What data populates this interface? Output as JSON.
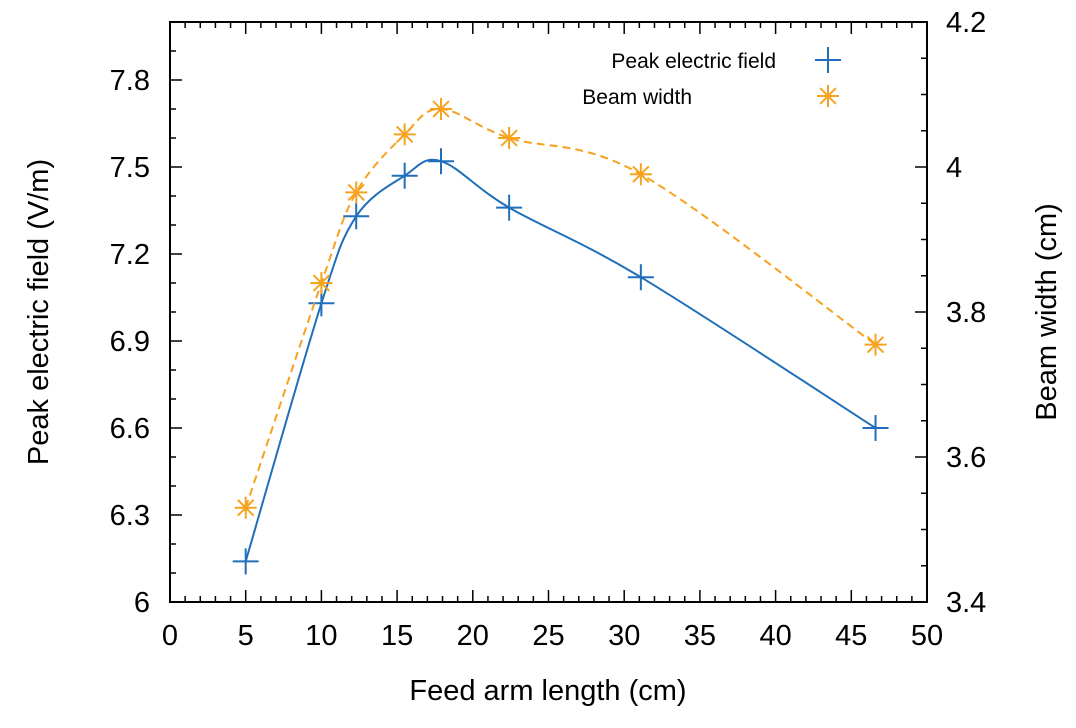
{
  "chart_data": {
    "type": "line",
    "xlabel": "Feed arm length (cm)",
    "ylabel": "Peak electric field (V/m)",
    "y2label": "Beam width (cm)",
    "xlim": [
      0,
      50
    ],
    "ylim": [
      6.0,
      8.0
    ],
    "y2lim": [
      3.4,
      4.2
    ],
    "xticks": [
      "0",
      "5",
      "10",
      "15",
      "20",
      "25",
      "30",
      "35",
      "40",
      "45",
      "50"
    ],
    "yticks": [
      "6",
      "6.3",
      "6.6",
      "6.9",
      "7.2",
      "7.5",
      "7.8"
    ],
    "y2ticks": [
      "3.4",
      "3.6",
      "3.8",
      "4",
      "4.2"
    ],
    "legend_position": "top-right",
    "grid": false,
    "series": [
      {
        "name": "Peak electric field",
        "axis": "left",
        "color": "#1f6fba",
        "marker": "plus",
        "line_style": "solid",
        "x": [
          5,
          10,
          12.3,
          15.5,
          17.9,
          22.4,
          31.1,
          46.6
        ],
        "y": [
          6.14,
          7.03,
          7.33,
          7.47,
          7.52,
          7.36,
          7.12,
          6.6
        ]
      },
      {
        "name": "Beam width",
        "axis": "right",
        "color": "#f7a21f",
        "marker": "star",
        "line_style": "dashed",
        "x": [
          5,
          10,
          12.3,
          15.5,
          17.9,
          22.4,
          31.1,
          46.6
        ],
        "y": [
          3.53,
          3.84,
          3.965,
          4.045,
          4.08,
          4.04,
          3.99,
          3.755
        ]
      }
    ]
  }
}
